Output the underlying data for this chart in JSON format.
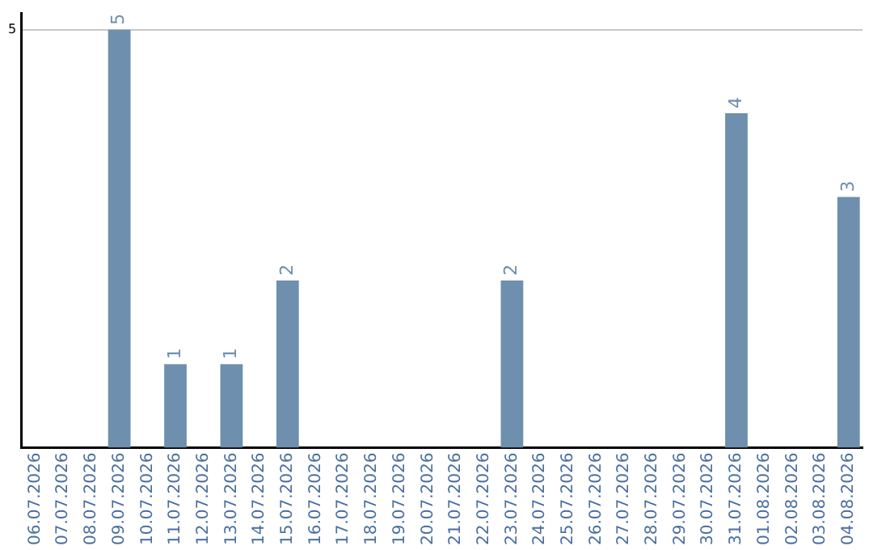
{
  "chart_data": {
    "type": "bar",
    "categories": [
      "06.07.2026",
      "07.07.2026",
      "08.07.2026",
      "09.07.2026",
      "10.07.2026",
      "11.07.2026",
      "12.07.2026",
      "13.07.2026",
      "14.07.2026",
      "15.07.2026",
      "16.07.2026",
      "17.07.2026",
      "18.07.2026",
      "19.07.2026",
      "20.07.2026",
      "21.07.2026",
      "22.07.2026",
      "23.07.2026",
      "24.07.2026",
      "25.07.2026",
      "26.07.2026",
      "27.07.2026",
      "28.07.2026",
      "29.07.2026",
      "30.07.2026",
      "31.07.2026",
      "01.08.2026",
      "02.08.2026",
      "03.08.2026",
      "04.08.2026"
    ],
    "values": [
      null,
      null,
      null,
      5,
      null,
      1,
      null,
      1,
      null,
      2,
      null,
      null,
      null,
      null,
      null,
      null,
      null,
      2,
      null,
      null,
      null,
      null,
      null,
      null,
      null,
      4,
      null,
      null,
      null,
      3
    ],
    "color": "#6e8fad",
    "ylim": [
      0,
      5.2
    ],
    "yticks": [
      5
    ],
    "grid": "y",
    "legend": false,
    "data_labels": true
  }
}
